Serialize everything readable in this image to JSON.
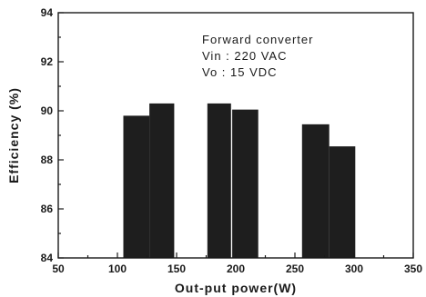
{
  "chart_data": {
    "type": "bar",
    "title": "",
    "xlabel": "Out-put power(W)",
    "ylabel": "Efficiency (%)",
    "xlim": [
      50,
      350
    ],
    "ylim": [
      84,
      94
    ],
    "xticks": [
      50,
      100,
      150,
      200,
      250,
      300,
      350
    ],
    "yticks": [
      84,
      86,
      88,
      90,
      92,
      94
    ],
    "grid": false,
    "bars": [
      {
        "x_start": 105,
        "x_end": 127,
        "value": 89.8
      },
      {
        "x_start": 127,
        "x_end": 148,
        "value": 90.3
      },
      {
        "x_start": 176,
        "x_end": 196,
        "value": 90.3
      },
      {
        "x_start": 197,
        "x_end": 219,
        "value": 90.05
      },
      {
        "x_start": 256,
        "x_end": 279,
        "value": 89.45
      },
      {
        "x_start": 279,
        "x_end": 301,
        "value": 88.55
      }
    ],
    "annotations": [
      "Forward converter",
      "Vin : 220 VAC",
      "Vo  : 15 VDC"
    ],
    "bar_color": "#1e1e1e"
  }
}
